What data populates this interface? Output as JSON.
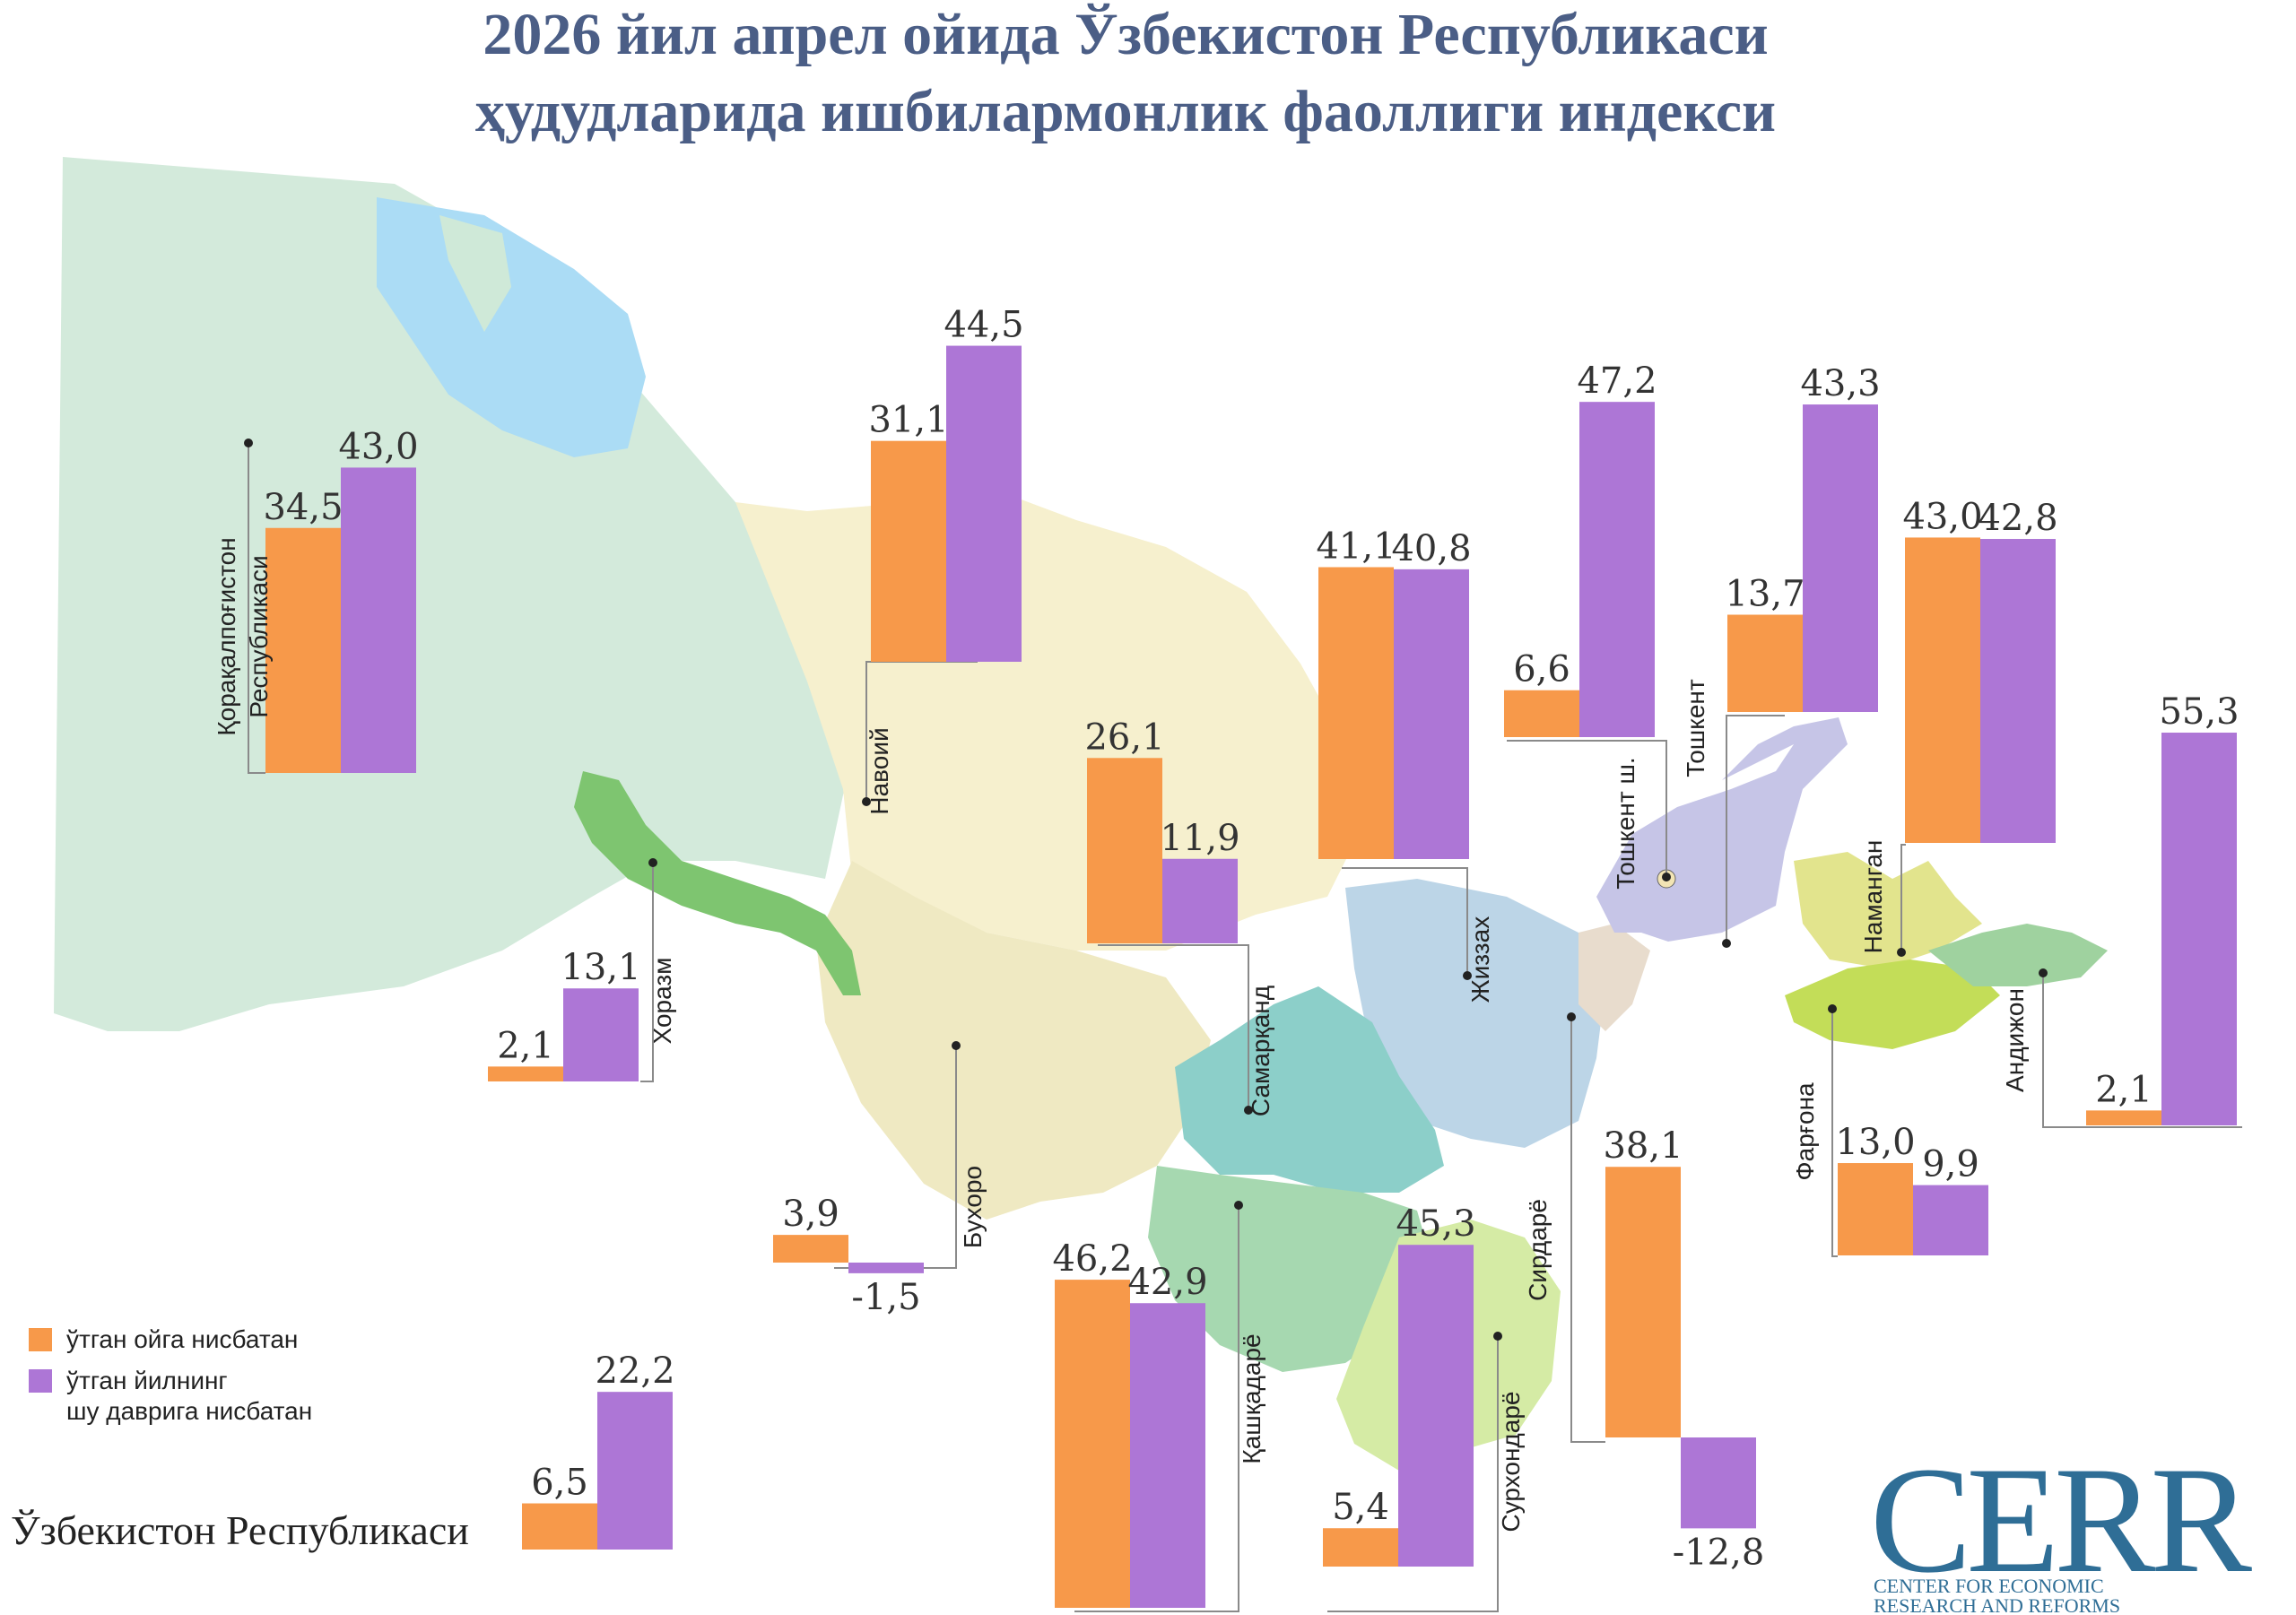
{
  "header": {
    "title_line1": "2026 йил апрел ойида Ўзбекистон Республикаси",
    "title_line2": "ҳудудларида ишбилармонлик фаоллиги индекси"
  },
  "colors": {
    "monthly": "#f7994a",
    "yearly": "#ad76d6",
    "title": "#4b5e86",
    "logo": "#2f6e96"
  },
  "legend": {
    "monthly_label": "ўтган ойга нисбатан",
    "yearly_label_line1": "ўтган йилнинг",
    "yearly_label_line2": "шу даврига нисбатан"
  },
  "national": {
    "label": "Ўзбекистон Республикаси"
  },
  "logo": {
    "name": "CERR",
    "line1": "CENTER FOR ECONOMIC",
    "line2": "RESEARCH AND REFORMS"
  },
  "chart_data": {
    "type": "bar",
    "series": [
      {
        "name": "ўтган ойга нисбатан",
        "color": "#f7994a"
      },
      {
        "name": "ўтган йилнинг шу даврига нисбатан",
        "color": "#ad76d6"
      }
    ],
    "regions": [
      {
        "name": "Қорақалпоғистон Республикаси",
        "values": [
          34.5,
          43.0
        ],
        "labels": [
          "34,5",
          "43,0"
        ]
      },
      {
        "name": "Хоразм",
        "values": [
          2.1,
          13.1
        ],
        "labels": [
          "2,1",
          "13,1"
        ]
      },
      {
        "name": "Навоий",
        "values": [
          31.1,
          44.5
        ],
        "labels": [
          "31,1",
          "44,5"
        ]
      },
      {
        "name": "Бухоро",
        "values": [
          3.9,
          -1.5
        ],
        "labels": [
          "3,9",
          "-1,5"
        ]
      },
      {
        "name": "Самарқанд",
        "values": [
          26.1,
          11.9
        ],
        "labels": [
          "26,1",
          "11,9"
        ]
      },
      {
        "name": "Жиззах",
        "values": [
          41.1,
          40.8
        ],
        "labels": [
          "41,1",
          "40,8"
        ]
      },
      {
        "name": "Қашқадарё",
        "values": [
          46.2,
          42.9
        ],
        "labels": [
          "46,2",
          "42,9"
        ]
      },
      {
        "name": "Сурхондарё",
        "values": [
          5.4,
          45.3
        ],
        "labels": [
          "5,4",
          "45,3"
        ]
      },
      {
        "name": "Сирдарё",
        "values": [
          38.1,
          -12.8
        ],
        "labels": [
          "38,1",
          "-12,8"
        ]
      },
      {
        "name": "Тошкент ш.",
        "values": [
          6.6,
          47.2
        ],
        "labels": [
          "6,6",
          "47,2"
        ]
      },
      {
        "name": "Тошкент",
        "values": [
          13.7,
          43.3
        ],
        "labels": [
          "13,7",
          "43,3"
        ]
      },
      {
        "name": "Наманган",
        "values": [
          43.0,
          42.8
        ],
        "labels": [
          "43,0",
          "42,8"
        ]
      },
      {
        "name": "Фарғона",
        "values": [
          13.0,
          9.9
        ],
        "labels": [
          "13,0",
          "9,9"
        ]
      },
      {
        "name": "Андижон",
        "values": [
          2.1,
          55.3
        ],
        "labels": [
          "2,1",
          "55,3"
        ]
      },
      {
        "name": "Ўзбекистон Республикаси",
        "values": [
          6.5,
          22.2
        ],
        "labels": [
          "6,5",
          "22,2"
        ]
      }
    ]
  }
}
